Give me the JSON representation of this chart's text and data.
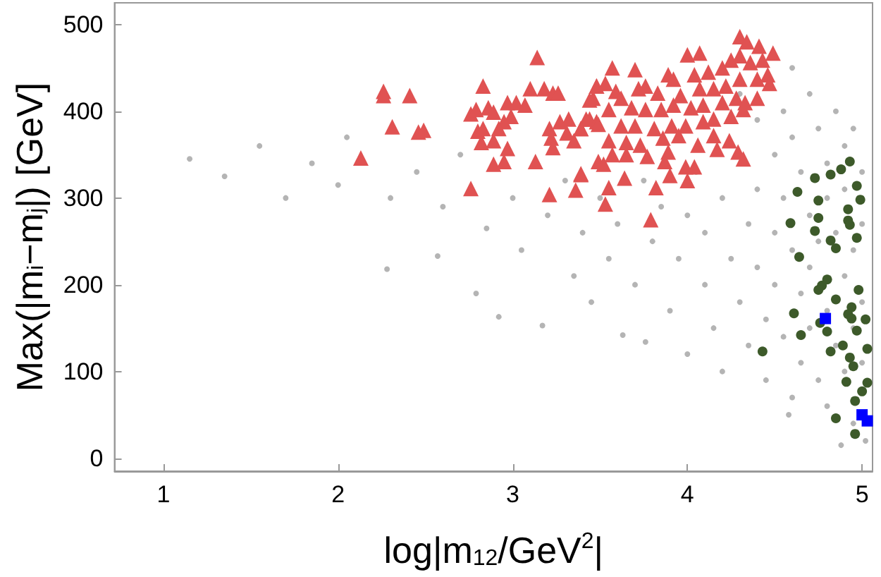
{
  "chart_data": {
    "type": "scatter",
    "xlabel": "log|m$_{12}$/GeV$^{2}$|",
    "ylabel": "Max(|m$_{i}$−m$_{j}$|) [GeV]",
    "xlim": [
      0.72,
      5.06
    ],
    "ylim": [
      -15,
      525
    ],
    "xticks": [
      1,
      2,
      3,
      4,
      5
    ],
    "yticks": [
      0,
      100,
      200,
      300,
      400,
      500
    ],
    "grid": false,
    "series": [
      {
        "color": "#b4b4b4",
        "marker": "circle",
        "x": [
          1.15,
          1.35,
          1.55,
          1.7,
          1.85,
          2.0,
          2.05,
          2.28,
          2.3,
          2.45,
          2.57,
          2.6,
          2.7,
          2.79,
          2.85,
          2.92,
          3.0,
          3.05,
          3.17,
          3.2,
          3.3,
          3.35,
          3.4,
          3.45,
          3.5,
          3.55,
          3.6,
          3.63,
          3.7,
          3.75,
          3.76,
          3.8,
          3.85,
          3.9,
          3.95,
          4.0,
          4.0,
          4.05,
          4.1,
          4.1,
          4.15,
          4.2,
          4.2,
          4.25,
          4.3,
          4.35,
          4.35,
          4.4,
          4.4,
          4.4,
          4.45,
          4.45,
          4.5,
          4.5,
          4.5,
          4.55,
          4.55,
          4.55,
          4.6,
          4.6,
          4.6,
          4.65,
          4.65,
          4.65,
          4.7,
          4.7,
          4.7,
          4.7,
          4.75,
          4.75,
          4.75,
          4.8,
          4.8,
          4.8,
          4.8,
          4.85,
          4.85,
          4.85,
          4.9,
          4.9,
          4.9,
          4.9,
          4.95,
          4.95,
          4.95,
          4.95,
          5.0,
          5.0,
          5.0,
          5.0,
          5.02,
          4.58,
          4.88,
          4.3,
          4.6
        ],
        "values": [
          345,
          325,
          360,
          300,
          340,
          315,
          370,
          218,
          300,
          330,
          233,
          290,
          350,
          190,
          265,
          163,
          300,
          240,
          153,
          280,
          320,
          210,
          260,
          180,
          300,
          230,
          270,
          142,
          200,
          320,
          134,
          250,
          290,
          170,
          230,
          280,
          120,
          330,
          200,
          260,
          150,
          300,
          100,
          230,
          180,
          270,
          130,
          390,
          310,
          220,
          160,
          90,
          350,
          260,
          200,
          400,
          300,
          140,
          370,
          240,
          70,
          330,
          190,
          110,
          420,
          280,
          220,
          150,
          380,
          250,
          90,
          340,
          300,
          170,
          60,
          400,
          260,
          130,
          360,
          310,
          210,
          100,
          380,
          240,
          150,
          40,
          330,
          270,
          180,
          110,
          20,
          50,
          15,
          420,
          450
        ]
      },
      {
        "color": "#e05252",
        "marker": "triangle",
        "x": [
          2.13,
          2.26,
          2.26,
          2.41,
          2.31,
          2.46,
          2.49,
          2.76,
          2.83,
          3.14,
          3.1,
          3.18,
          3.23,
          3.26,
          2.76,
          2.79,
          2.86,
          2.89,
          2.97,
          3.02,
          3.07,
          2.99,
          2.95,
          2.92,
          2.8,
          2.83,
          2.82,
          2.89,
          2.97,
          2.89,
          2.95,
          3.13,
          3.21,
          3.36,
          3.39,
          3.21,
          3.22,
          3.23,
          3.27,
          3.32,
          3.31,
          3.35,
          3.39,
          3.44,
          3.48,
          3.46,
          3.48,
          3.49,
          4.3,
          4.34,
          4.41,
          4.49,
          4.0,
          4.07,
          3.57,
          3.7,
          3.48,
          3.44,
          3.53,
          3.59,
          3.62,
          3.72,
          3.76,
          3.89,
          3.92,
          3.83,
          3.96,
          4.04,
          4.12,
          4.2,
          4.25,
          4.3,
          4.36,
          4.43,
          4.46,
          4.4,
          4.47,
          4.3,
          4.22,
          4.15,
          4.07,
          4.4,
          4.28,
          4.2,
          4.09,
          4.02,
          3.92,
          3.85,
          3.76,
          3.68,
          3.55,
          3.42,
          3.49,
          3.39,
          3.62,
          3.7,
          3.81,
          3.91,
          3.99,
          4.09,
          4.15,
          4.25,
          4.32,
          4.33,
          3.55,
          3.65,
          3.73,
          3.86,
          3.95,
          4.06,
          4.15,
          4.24,
          4.17,
          4.29,
          4.32,
          3.52,
          3.57,
          3.65,
          3.77,
          3.89,
          3.87,
          3.99,
          4.04,
          3.39,
          3.64,
          3.9,
          4.0,
          3.55,
          3.82,
          3.53,
          3.79
        ],
        "values": [
          346,
          423,
          418,
          418,
          382,
          376,
          378,
          311,
          429,
          462,
          426,
          426,
          421,
          421,
          397,
          402,
          404,
          399,
          410,
          410,
          407,
          394,
          388,
          380,
          377,
          380,
          364,
          366,
          357,
          339,
          342,
          342,
          304,
          309,
          327,
          380,
          369,
          358,
          388,
          391,
          375,
          366,
          380,
          391,
          388,
          415,
          429,
          342,
          486,
          480,
          475,
          467,
          465,
          467,
          450,
          448,
          429,
          413,
          432,
          423,
          415,
          426,
          429,
          442,
          437,
          421,
          418,
          442,
          445,
          450,
          459,
          464,
          456,
          459,
          442,
          437,
          432,
          437,
          429,
          426,
          426,
          415,
          415,
          410,
          407,
          404,
          407,
          402,
          402,
          404,
          402,
          391,
          385,
          380,
          383,
          383,
          380,
          383,
          383,
          388,
          391,
          394,
          402,
          410,
          366,
          364,
          361,
          369,
          372,
          361,
          372,
          366,
          356,
          353,
          345,
          339,
          350,
          350,
          348,
          353,
          342,
          336,
          336,
          328,
          323,
          326,
          320,
          312,
          312,
          293,
          275
        ]
      },
      {
        "color": "#3d5a2a",
        "marker": "circle",
        "x": [
          4.73,
          4.82,
          4.88,
          4.97,
          4.99,
          4.63,
          4.75,
          4.92,
          4.75,
          4.92,
          4.93,
          4.59,
          4.73,
          4.97,
          4.82,
          4.85,
          4.64,
          4.8,
          4.77,
          4.75,
          4.98,
          4.85,
          4.61,
          4.94,
          4.92,
          4.94,
          5.02,
          4.76,
          4.8,
          4.97,
          4.65,
          4.43,
          4.82,
          4.89,
          5.03,
          4.93,
          4.95,
          4.91,
          5.03,
          5.0,
          4.96,
          4.85,
          4.96,
          4.93
        ],
        "values": [
          323,
          327,
          333,
          314,
          298,
          307,
          297,
          287,
          277,
          274,
          269,
          271,
          262,
          254,
          251,
          242,
          232,
          206,
          199,
          194,
          194,
          183,
          167,
          174,
          166,
          161,
          160,
          156,
          146,
          147,
          142,
          123,
          123,
          130,
          126,
          116,
          106,
          88,
          87,
          77,
          66,
          46,
          28,
          342
        ]
      },
      {
        "color": "#0000ff",
        "marker": "square",
        "x": [
          4.79,
          5.0,
          5.03
        ],
        "values": [
          161,
          50,
          43
        ]
      }
    ]
  }
}
